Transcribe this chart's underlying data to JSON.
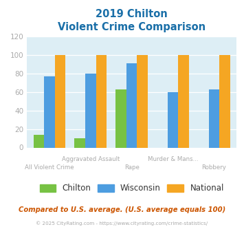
{
  "title_line1": "2019 Chilton",
  "title_line2": "Violent Crime Comparison",
  "categories_row1": [
    "",
    "Aggravated Assault",
    "",
    "Murder & Mans...",
    ""
  ],
  "categories_row2": [
    "All Violent Crime",
    "",
    "Rape",
    "",
    "Robbery"
  ],
  "chilton": [
    14,
    10,
    63,
    0,
    0
  ],
  "wisconsin": [
    77,
    80,
    91,
    60,
    63
  ],
  "national": [
    100,
    100,
    100,
    100,
    100
  ],
  "chilton_color": "#77c244",
  "wisconsin_color": "#4d9de0",
  "national_color": "#f5a623",
  "ylim": [
    0,
    120
  ],
  "yticks": [
    0,
    20,
    40,
    60,
    80,
    100,
    120
  ],
  "bg_color": "#ddeef5",
  "footer_text": "Compared to U.S. average. (U.S. average equals 100)",
  "copyright_text": "© 2025 CityRating.com - https://www.cityrating.com/crime-statistics/",
  "title_color": "#1a6fa8",
  "footer_color": "#cc5500",
  "copyright_color": "#aaaaaa",
  "tick_label_color": "#aaaaaa",
  "legend_text_color": "#333333"
}
